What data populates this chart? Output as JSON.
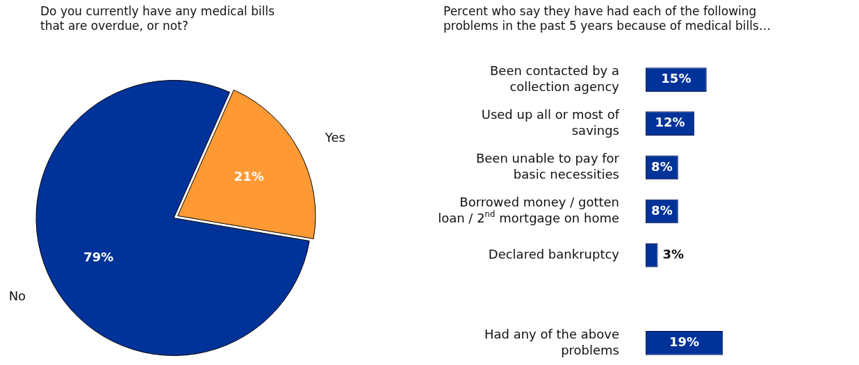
{
  "chart_data": [
    {
      "type": "pie",
      "title": "Do you currently have any medical bills that are overdue, or not?",
      "categories": [
        "Yes",
        "No"
      ],
      "values": [
        21,
        79
      ],
      "colors": [
        "#ff9933",
        "#003399"
      ],
      "value_labels": [
        "21%",
        "79%"
      ]
    },
    {
      "type": "bar",
      "orientation": "horizontal",
      "title": "Percent who say they have had each of the following problems in the past 5 years because of medical bills…",
      "categories": [
        "Been contacted by a\ncollection agency",
        "Used up all or most of\nsavings",
        "Been unable to pay for\nbasic necessities",
        "Borrowed money / gotten\nloan / 2$^{nd}$ mortgage on home",
        "Declared bankruptcy",
        null,
        "Had any of the above\nproblems"
      ],
      "values": [
        15,
        12,
        8,
        8,
        3,
        null,
        19
      ],
      "color": "#003399",
      "value_labels": [
        "15%",
        "12%",
        "8%",
        "8%",
        "3%",
        null,
        "19%"
      ]
    }
  ]
}
